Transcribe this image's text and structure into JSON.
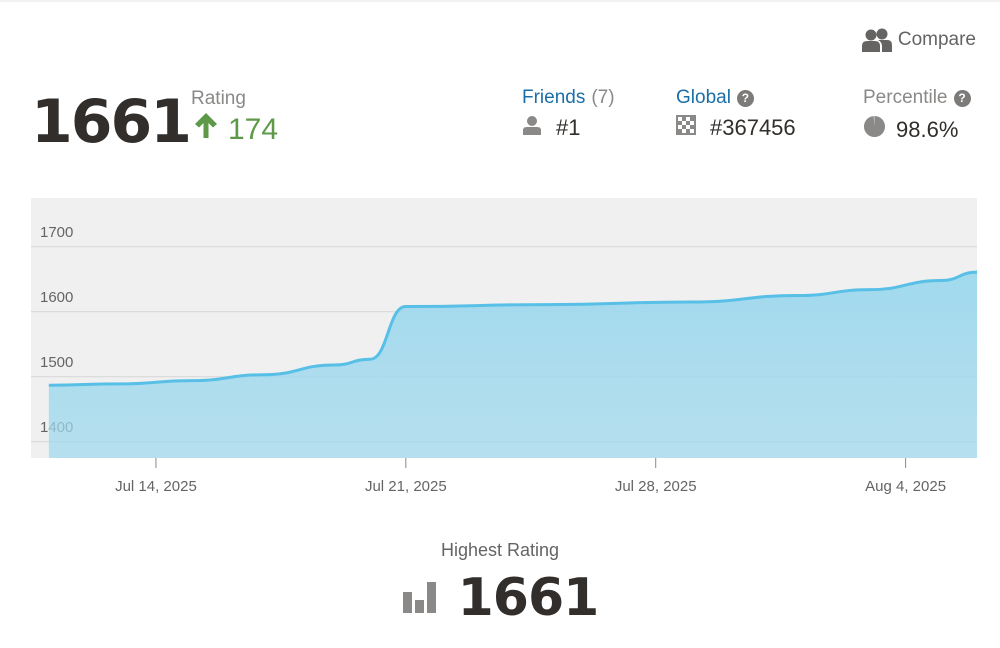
{
  "header": {
    "compare_label": "Compare",
    "compare_icon": "users-icon"
  },
  "rating": {
    "value": "1661",
    "label": "Rating",
    "change": "174",
    "change_icon": "arrow-up-icon",
    "change_color": "#5d9948"
  },
  "stats": {
    "friends": {
      "label": "Friends",
      "count": "(7)",
      "rank": "#1",
      "icon": "person-icon"
    },
    "global": {
      "label": "Global",
      "rank": "#367456",
      "icon": "checkerboard-icon",
      "help_icon": "question-icon"
    },
    "percentile": {
      "label": "Percentile",
      "value": "98.6%",
      "icon": "pie-icon",
      "help_icon": "question-icon"
    }
  },
  "highest": {
    "label": "Highest Rating",
    "value": "1661",
    "icon": "bar-chart-icon"
  },
  "colors": {
    "line": "#58bfe6",
    "area": "#9dd8ee",
    "plot_bg": "#f0f0f0",
    "link": "#1a6fa8"
  },
  "chart_data": {
    "type": "area",
    "title": "",
    "xlabel": "",
    "ylabel": "",
    "ylim": [
      1375,
      1775
    ],
    "y_ticks": [
      "1400",
      "1500",
      "1600",
      "1700"
    ],
    "x_ticks": [
      "Jul 14, 2025",
      "Jul 21, 2025",
      "Jul 28, 2025",
      "Aug 4, 2025"
    ],
    "grid": true,
    "legend": "none",
    "series": [
      {
        "values": [
          {
            "x": "2025-07-11",
            "y": 1487
          },
          {
            "x": "2025-07-13",
            "y": 1489
          },
          {
            "x": "2025-07-15",
            "y": 1494
          },
          {
            "x": "2025-07-17",
            "y": 1503
          },
          {
            "x": "2025-07-19",
            "y": 1518
          },
          {
            "x": "2025-07-20",
            "y": 1527
          },
          {
            "x": "2025-07-21",
            "y": 1608
          },
          {
            "x": "2025-07-25",
            "y": 1611
          },
          {
            "x": "2025-07-29",
            "y": 1615
          },
          {
            "x": "2025-08-01",
            "y": 1625
          },
          {
            "x": "2025-08-03",
            "y": 1634
          },
          {
            "x": "2025-08-05",
            "y": 1648
          },
          {
            "x": "2025-08-06",
            "y": 1661
          }
        ]
      }
    ]
  }
}
